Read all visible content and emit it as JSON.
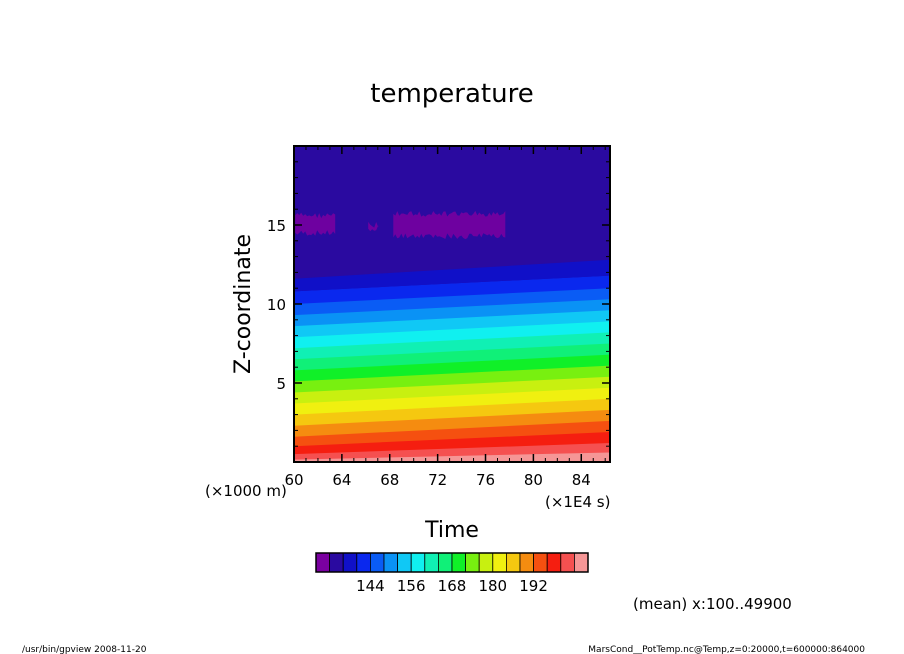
{
  "chart_data": {
    "type": "heatmap",
    "title": "temperature",
    "xlabel": "Time",
    "ylabel": "Z-coordinate",
    "x_unit": "(×1E4 s)",
    "y_unit": "(×1000 m)",
    "xlim": [
      60,
      86.4
    ],
    "ylim": [
      0,
      20
    ],
    "x_ticks": [
      "60",
      "64",
      "68",
      "72",
      "76",
      "80",
      "84"
    ],
    "y_ticks": [
      "5",
      "10",
      "15"
    ],
    "x_tick_values": [
      60,
      64,
      68,
      72,
      76,
      80,
      84
    ],
    "y_tick_values": [
      5,
      10,
      15
    ],
    "colorbar": {
      "levels": [
        132,
        136,
        140,
        144,
        148,
        152,
        156,
        160,
        164,
        168,
        172,
        176,
        180,
        184,
        188,
        192,
        196
      ],
      "tick_labels": [
        "144",
        "156",
        "168",
        "180",
        "192"
      ],
      "tick_values": [
        144,
        156,
        168,
        180,
        192
      ],
      "colors": [
        "#7a00a0",
        "#2a0aa0",
        "#1010c8",
        "#0a28ee",
        "#0a5cf5",
        "#0a92f5",
        "#10c8f5",
        "#10f0f0",
        "#10f0b4",
        "#10f078",
        "#10f028",
        "#78f010",
        "#c8f010",
        "#f0f010",
        "#f5c810",
        "#f58c10",
        "#f55010",
        "#f51e10",
        "#f55050",
        "#f59696"
      ]
    },
    "contour_lines": {
      "start_z": [
        10.8,
        10.0,
        9.3,
        8.6,
        7.9,
        7.2,
        6.5,
        5.8,
        5.1,
        4.4,
        3.7,
        3.0,
        2.3,
        1.6,
        1.0,
        0.5,
        0.15
      ],
      "end_z": [
        11.8,
        11.0,
        10.3,
        9.6,
        8.9,
        8.2,
        7.5,
        6.8,
        6.1,
        5.4,
        4.7,
        4.0,
        3.3,
        2.6,
        1.9,
        1.2,
        0.6
      ]
    },
    "purple_patches": [
      {
        "x_start": 60.1,
        "x_end": 63.6,
        "z_low": 14.3,
        "z_high": 15.8
      },
      {
        "x_start": 66.2,
        "x_end": 67.2,
        "z_low": 14.6,
        "z_high": 15.2
      },
      {
        "x_start": 68.3,
        "x_end": 77.8,
        "z_low": 14.1,
        "z_high": 15.9
      }
    ]
  },
  "annotation": "(mean) x:100..49900",
  "footer": {
    "left": "/usr/bin/gpview   2008-11-20",
    "right": "MarsCond__PotTemp.nc@Temp,z=0:20000,t=600000:864000"
  }
}
